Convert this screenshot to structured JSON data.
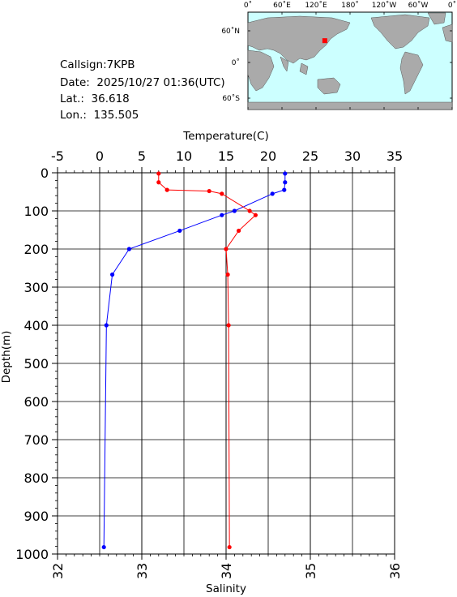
{
  "station": {
    "callsign": "Callsign:7KPB",
    "date": "Date:  2025/10/27 01:36(UTC)",
    "lat": "Lat.:  36.618",
    "lon": "Lon.:  135.505"
  },
  "map": {
    "lon_labels": [
      "0˚",
      "60˚E",
      "120˚E",
      "180˚",
      "120˚W",
      "60˚W",
      "0˚"
    ],
    "lat_labels": [
      "60˚N",
      "0˚",
      "60˚S"
    ],
    "ocean_color": "#ccffff",
    "land_color": "#aaaaaa",
    "marker_color": "#ff0000",
    "marker": {
      "lon": 135.505,
      "lat": 36.618
    }
  },
  "chart_data": {
    "type": "line",
    "top_axis": {
      "label": "Temperature(C)",
      "range": [
        -5,
        35
      ],
      "ticks": [
        "-5",
        "0",
        "5",
        "10",
        "15",
        "20",
        "25",
        "30",
        "35"
      ]
    },
    "bottom_axis": {
      "label": "Salinity",
      "range": [
        32,
        36
      ],
      "ticks": [
        "32",
        "33",
        "34",
        "35",
        "36"
      ]
    },
    "left_axis": {
      "label": "Depth(m)",
      "range": [
        0,
        1000
      ],
      "inverted": true,
      "ticks": [
        "0",
        "100",
        "200",
        "300",
        "400",
        "500",
        "600",
        "700",
        "800",
        "900",
        "1000"
      ]
    },
    "grid": true,
    "series": [
      {
        "axis": "temperature",
        "color": "#0000ff",
        "points": [
          [
            22.0,
            2
          ],
          [
            22.0,
            25
          ],
          [
            21.9,
            45
          ],
          [
            20.5,
            55
          ],
          [
            16.0,
            100
          ],
          [
            14.5,
            111
          ],
          [
            9.5,
            152
          ],
          [
            3.5,
            200
          ],
          [
            1.5,
            267
          ],
          [
            0.8,
            400
          ],
          [
            0.5,
            982
          ]
        ]
      },
      {
        "axis": "salinity",
        "color": "#ff0000",
        "points": [
          [
            33.2,
            2
          ],
          [
            33.2,
            25
          ],
          [
            33.3,
            45
          ],
          [
            33.8,
            48
          ],
          [
            33.95,
            55
          ],
          [
            34.28,
            100
          ],
          [
            34.35,
            111
          ],
          [
            34.15,
            152
          ],
          [
            34.0,
            200
          ],
          [
            34.02,
            267
          ],
          [
            34.03,
            400
          ],
          [
            34.04,
            982
          ]
        ]
      }
    ]
  }
}
